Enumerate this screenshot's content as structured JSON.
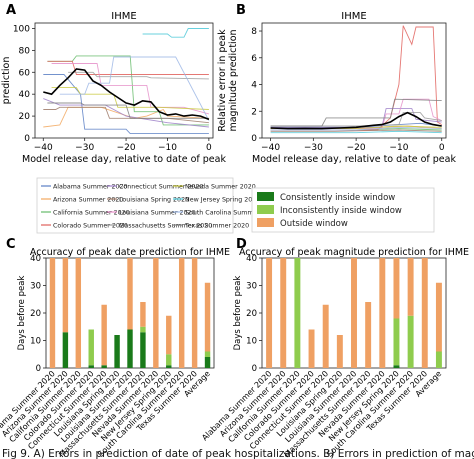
{
  "panel_letters": [
    "A",
    "B",
    "C",
    "D"
  ],
  "legend": {
    "series": [
      {
        "name": "Alabama Summer 2020",
        "color": "#5b7fc4"
      },
      {
        "name": "Arizona Summer 2020",
        "color": "#f2a85f"
      },
      {
        "name": "California Summer 2020",
        "color": "#66bb6a"
      },
      {
        "name": "Colorado Summer 2020",
        "color": "#e0605c"
      },
      {
        "name": "Connecticut Summer 2020",
        "color": "#9c7fc8"
      },
      {
        "name": "Louisiana Spring 2020",
        "color": "#9e7a68"
      },
      {
        "name": "Louisiana Summer 2020",
        "color": "#e58fc9"
      },
      {
        "name": "Massachusetts Summer 2020",
        "color": "#9a9a9a"
      },
      {
        "name": "Nevada Summer 2020",
        "color": "#c9c93f"
      },
      {
        "name": "New Jersey Spring 2020",
        "color": "#4ec8d8"
      },
      {
        "name": "South Carolina Summer 2020",
        "color": "#9fb9e6"
      },
      {
        "name": "Texas Summer 2020",
        "color": "#7f7f7f"
      }
    ],
    "categories": [
      {
        "name": "Consistently inside window",
        "color": "#1a7a1a"
      },
      {
        "name": "Inconsistently inside window",
        "color": "#8fcc4e"
      },
      {
        "name": "Outside window",
        "color": "#efa063"
      }
    ]
  },
  "caption": "Fig 9. A) Errors in prediction of date of peak hospitalizations. B) Errors in prediction of magnitude",
  "chart_data": [
    {
      "panel": "A",
      "type": "line",
      "title": "IHME",
      "xlabel": "Model release day, relative to date of peak",
      "ylabel": "Error in peak date prediction",
      "xlim": [
        -42,
        1
      ],
      "ylim": [
        0,
        105
      ],
      "xticks": [
        -40,
        -30,
        -20,
        -10,
        0
      ],
      "yticks": [
        0,
        20,
        40,
        60,
        80,
        100
      ],
      "series": [
        {
          "name": "Alabama Summer 2020",
          "x": [
            -40,
            -35,
            -31,
            -30,
            -20,
            -19,
            -5,
            0
          ],
          "values": [
            58,
            58,
            40,
            8,
            8,
            4,
            4,
            4
          ]
        },
        {
          "name": "Arizona Summer 2020",
          "x": [
            -40,
            -36,
            -34,
            -26,
            -18,
            -15,
            -11,
            -10,
            0
          ],
          "values": [
            10,
            12,
            28,
            28,
            18,
            20,
            26,
            20,
            18
          ]
        },
        {
          "name": "California Summer 2020",
          "x": [
            -39,
            -33,
            -32,
            -19,
            -18,
            -12,
            -11,
            -6,
            0
          ],
          "values": [
            70,
            70,
            75,
            75,
            24,
            24,
            12,
            12,
            12
          ]
        },
        {
          "name": "Colorado Summer 2020",
          "x": [
            -39,
            -33,
            -32,
            -11,
            0
          ],
          "values": [
            70,
            70,
            58,
            58,
            58
          ]
        },
        {
          "name": "Connecticut Summer 2020",
          "x": [
            -40,
            -36,
            -25,
            -20,
            -10,
            0
          ],
          "values": [
            36,
            30,
            30,
            20,
            14,
            10
          ]
        },
        {
          "name": "Louisiana Spring 2020",
          "x": [
            -40,
            -37,
            -36,
            -25,
            -24,
            -10,
            0
          ],
          "values": [
            26,
            26,
            28,
            28,
            18,
            18,
            14
          ]
        },
        {
          "name": "Louisiana Summer 2020",
          "x": [
            -38,
            -34,
            -27,
            -26,
            -15,
            -14,
            -6,
            0
          ],
          "values": [
            68,
            68,
            68,
            48,
            48,
            28,
            28,
            22
          ]
        },
        {
          "name": "Massachusetts Summer 2020",
          "x": [
            -34,
            -33,
            -28,
            -27,
            -15,
            -14,
            0
          ],
          "values": [
            60,
            60,
            60,
            56,
            56,
            55,
            54
          ]
        },
        {
          "name": "Nevada Summer 2020",
          "x": [
            -38,
            -32,
            -31,
            -23,
            -22,
            -12,
            0
          ],
          "values": [
            46,
            46,
            40,
            40,
            28,
            28,
            26
          ]
        },
        {
          "name": "New Jersey Spring 2020",
          "x": [
            -16,
            -15,
            -10,
            -9,
            -6,
            -5,
            0
          ],
          "values": [
            95,
            95,
            95,
            92,
            92,
            100,
            100
          ]
        },
        {
          "name": "South Carolina Summer 2020",
          "x": [
            -36,
            -30,
            -29,
            -24,
            -23,
            -8,
            0
          ],
          "values": [
            40,
            40,
            50,
            50,
            74,
            74,
            16
          ]
        },
        {
          "name": "Texas Summer 2020",
          "x": [
            -39,
            -31,
            -30,
            -20,
            -19,
            0
          ],
          "values": [
            32,
            32,
            30,
            30,
            18,
            18
          ]
        },
        {
          "name": "Average",
          "x": [
            -40,
            -38,
            -36,
            -34,
            -32,
            -30,
            -28,
            -26,
            -24,
            -22,
            -20,
            -18,
            -16,
            -14,
            -12,
            -10,
            -8,
            -6,
            -4,
            -2,
            0
          ],
          "values": [
            42,
            40,
            48,
            55,
            63,
            62,
            52,
            48,
            42,
            37,
            32,
            30,
            34,
            33,
            24,
            21,
            22,
            20,
            21,
            20,
            17
          ]
        }
      ]
    },
    {
      "panel": "B",
      "type": "line",
      "title": "IHME",
      "xlabel": "Model release day, relative to date of peak",
      "ylabel": "Relative error in peak magnitude prediction",
      "xlim": [
        -42,
        1
      ],
      "ylim": [
        0,
        8.6
      ],
      "xticks": [
        -40,
        -30,
        -20,
        -10,
        0
      ],
      "yticks": [
        0,
        2,
        4,
        6,
        8
      ],
      "series": [
        {
          "name": "Alabama Summer 2020",
          "x": [
            -40,
            -20,
            -10,
            -5,
            0
          ],
          "values": [
            0.8,
            0.8,
            1.0,
            1.1,
            0.9
          ]
        },
        {
          "name": "Arizona Summer 2020",
          "x": [
            -40,
            -20,
            -8,
            -4,
            0
          ],
          "values": [
            0.7,
            0.7,
            0.9,
            0.8,
            0.7
          ]
        },
        {
          "name": "California Summer 2020",
          "x": [
            -40,
            -20,
            -10,
            0
          ],
          "values": [
            0.6,
            0.6,
            0.7,
            0.6
          ]
        },
        {
          "name": "Colorado Summer 2020",
          "x": [
            -40,
            -15,
            -12,
            -10,
            -9,
            -7,
            -6,
            -2,
            -1,
            0
          ],
          "values": [
            0.6,
            0.6,
            1.5,
            4.0,
            8.4,
            7.0,
            8.3,
            8.3,
            1.2,
            1.0
          ]
        },
        {
          "name": "Connecticut Summer 2020",
          "x": [
            -40,
            -14,
            -13,
            -7,
            -6,
            0
          ],
          "values": [
            0.8,
            0.8,
            2.2,
            2.2,
            1.4,
            1.2
          ]
        },
        {
          "name": "Louisiana Spring 2020",
          "x": [
            -40,
            -25,
            -10,
            0
          ],
          "values": [
            0.5,
            0.5,
            0.6,
            0.5
          ]
        },
        {
          "name": "Louisiana Summer 2020",
          "x": [
            -40,
            -14,
            -13,
            -10,
            -9,
            -3,
            -2,
            0
          ],
          "values": [
            0.7,
            0.7,
            1.8,
            1.8,
            2.9,
            2.9,
            1.6,
            1.3
          ]
        },
        {
          "name": "Massachusetts Summer 2020",
          "x": [
            -40,
            -20,
            -10,
            -9,
            -5,
            -4,
            0
          ],
          "values": [
            0.9,
            0.9,
            1.0,
            1.9,
            1.9,
            1.5,
            1.3
          ]
        },
        {
          "name": "Nevada Summer 2020",
          "x": [
            -40,
            -20,
            -10,
            0
          ],
          "values": [
            0.7,
            0.7,
            0.9,
            0.8
          ]
        },
        {
          "name": "New Jersey Spring 2020",
          "x": [
            -40,
            -20,
            -10,
            0
          ],
          "values": [
            0.4,
            0.4,
            0.5,
            0.4
          ]
        },
        {
          "name": "South Carolina Summer 2020",
          "x": [
            -40,
            -20,
            -10,
            0
          ],
          "values": [
            0.6,
            0.6,
            0.8,
            0.7
          ]
        },
        {
          "name": "Texas Summer 2020",
          "x": [
            -40,
            -28,
            -27,
            -20,
            -12,
            -11,
            0
          ],
          "values": [
            0.9,
            0.9,
            1.5,
            1.5,
            1.5,
            2.9,
            2.8
          ]
        },
        {
          "name": "Average",
          "x": [
            -40,
            -36,
            -32,
            -28,
            -24,
            -20,
            -16,
            -14,
            -12,
            -10,
            -8,
            -6,
            -4,
            -2,
            0
          ],
          "values": [
            0.75,
            0.7,
            0.72,
            0.7,
            0.75,
            0.8,
            0.95,
            1.0,
            1.2,
            1.6,
            1.9,
            1.6,
            1.2,
            1.0,
            0.9
          ]
        }
      ]
    },
    {
      "panel": "C",
      "type": "bar",
      "title": "Accuracy of peak date prediction for IHME",
      "ylabel": "Days before peak",
      "ylim": [
        0,
        40
      ],
      "yticks": [
        0,
        10,
        20,
        30,
        40
      ],
      "categories": [
        "Alabama Summer 2020",
        "Arizona Summer 2020",
        "California Summer 2020",
        "Colorado Summer 2020",
        "Connecticut Summer 2020",
        "Louisiana Spring 2020",
        "Louisiana Summer 2020",
        "Massachusetts Summer 2020",
        "Nevada Summer 2020",
        "New Jersey Spring 2020",
        "South Carolina Summer 2020",
        "Texas Summer 2020",
        "Average"
      ],
      "series": [
        {
          "name": "Consistently inside window",
          "values": [
            0,
            13,
            0,
            1,
            1,
            12,
            14,
            13,
            0,
            1,
            0,
            0,
            4
          ]
        },
        {
          "name": "Inconsistently inside window",
          "values": [
            0,
            0,
            0,
            13,
            0,
            0,
            0,
            2,
            0,
            4,
            0,
            0,
            2
          ]
        },
        {
          "name": "Outside window",
          "values": [
            40,
            27,
            40,
            0,
            22,
            0,
            26,
            9,
            40,
            14,
            40,
            40,
            25
          ]
        }
      ]
    },
    {
      "panel": "D",
      "type": "bar",
      "title": "Accuracy of peak magnitude prediction for IHME",
      "ylabel": "Days before peak",
      "ylim": [
        0,
        40
      ],
      "yticks": [
        0,
        10,
        20,
        30,
        40
      ],
      "categories": [
        "Alabama Summer 2020",
        "Arizona Summer 2020",
        "California Summer 2020",
        "Colorado Summer 2020",
        "Connecticut Summer 2020",
        "Louisiana Spring 2020",
        "Louisiana Summer 2020",
        "Massachusetts Summer 2020",
        "Nevada Summer 2020",
        "New Jersey Spring 2020",
        "South Carolina Summer 2020",
        "Texas Summer 2020",
        "Average"
      ],
      "series": [
        {
          "name": "Consistently inside window",
          "values": [
            0,
            0,
            0,
            0,
            0,
            0,
            0,
            0,
            0,
            1,
            0,
            0,
            0
          ]
        },
        {
          "name": "Inconsistently inside window",
          "values": [
            0,
            0,
            40,
            0,
            0,
            0,
            0,
            0,
            0,
            17,
            19,
            0,
            6
          ]
        },
        {
          "name": "Outside window",
          "values": [
            40,
            40,
            0,
            14,
            23,
            12,
            40,
            24,
            40,
            22,
            21,
            40,
            25
          ]
        }
      ]
    }
  ]
}
